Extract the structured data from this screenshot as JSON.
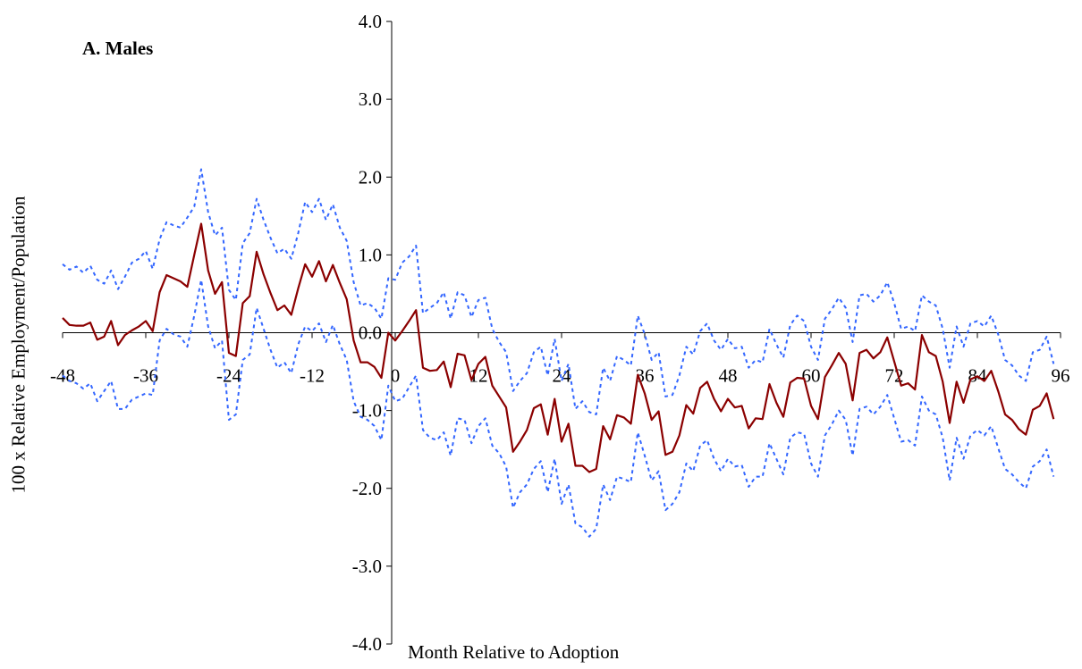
{
  "chart_data": {
    "type": "line",
    "title": "A. Males",
    "xlabel": "Month Relative to Adoption",
    "ylabel": "100 x Relative Employment/Population",
    "xlim": [
      -48,
      96
    ],
    "ylim": [
      -4.0,
      4.0
    ],
    "x_ticks": [
      "-48",
      "-36",
      "-24",
      "-12",
      "0",
      "12",
      "24",
      "36",
      "48",
      "60",
      "72",
      "84",
      "96"
    ],
    "y_ticks": [
      "4.0",
      "3.0",
      "2.0",
      "1.0",
      "0.0",
      "-1.0",
      "-2.0",
      "-3.0",
      "-4.0"
    ],
    "x_start": -48,
    "x_step": 1,
    "series": [
      {
        "role": "estimate",
        "color": "#8B0000",
        "style": "solid",
        "values": [
          0.19,
          0.1,
          0.09,
          0.09,
          0.13,
          -0.09,
          -0.05,
          0.15,
          -0.16,
          -0.03,
          0.03,
          0.08,
          0.15,
          0.02,
          0.52,
          0.74,
          0.7,
          0.66,
          0.59,
          1.0,
          1.4,
          0.8,
          0.5,
          0.65,
          -0.26,
          -0.3,
          0.38,
          0.47,
          1.04,
          0.75,
          0.51,
          0.29,
          0.35,
          0.23,
          0.57,
          0.88,
          0.72,
          0.92,
          0.66,
          0.87,
          0.64,
          0.43,
          -0.1,
          -0.38,
          -0.38,
          -0.44,
          -0.58,
          0.0,
          -0.1,
          0.02,
          0.15,
          0.29,
          -0.45,
          -0.49,
          -0.48,
          -0.37,
          -0.7,
          -0.27,
          -0.29,
          -0.61,
          -0.4,
          -0.31,
          -0.68,
          -0.82,
          -0.96,
          -1.53,
          -1.4,
          -1.25,
          -0.97,
          -0.92,
          -1.31,
          -0.85,
          -1.4,
          -1.17,
          -1.71,
          -1.71,
          -1.79,
          -1.75,
          -1.2,
          -1.37,
          -1.06,
          -1.09,
          -1.17,
          -0.54,
          -0.78,
          -1.12,
          -1.01,
          -1.57,
          -1.53,
          -1.32,
          -0.93,
          -1.04,
          -0.71,
          -0.63,
          -0.85,
          -1.01,
          -0.85,
          -0.96,
          -0.94,
          -1.23,
          -1.1,
          -1.11,
          -0.66,
          -0.9,
          -1.08,
          -0.64,
          -0.58,
          -0.59,
          -0.94,
          -1.11,
          -0.57,
          -0.42,
          -0.26,
          -0.4,
          -0.87,
          -0.26,
          -0.22,
          -0.33,
          -0.25,
          -0.06,
          -0.37,
          -0.68,
          -0.65,
          -0.73,
          -0.03,
          -0.25,
          -0.3,
          -0.63,
          -1.16,
          -0.63,
          -0.9,
          -0.6,
          -0.56,
          -0.62,
          -0.49,
          -0.75,
          -1.05,
          -1.12,
          -1.24,
          -1.31,
          -0.99,
          -0.94,
          -0.78,
          -1.11
        ]
      },
      {
        "role": "upper bound",
        "color": "#3366FF",
        "style": "dotted",
        "values": [
          0.88,
          0.81,
          0.85,
          0.77,
          0.86,
          0.68,
          0.63,
          0.8,
          0.56,
          0.72,
          0.9,
          0.95,
          1.05,
          0.82,
          1.2,
          1.42,
          1.38,
          1.35,
          1.48,
          1.62,
          2.1,
          1.55,
          1.25,
          1.35,
          0.55,
          0.42,
          1.15,
          1.28,
          1.72,
          1.45,
          1.22,
          1.02,
          1.08,
          0.95,
          1.28,
          1.68,
          1.55,
          1.72,
          1.45,
          1.65,
          1.35,
          1.18,
          0.65,
          0.35,
          0.38,
          0.32,
          0.18,
          0.7,
          0.68,
          0.9,
          0.98,
          1.12,
          0.25,
          0.32,
          0.38,
          0.52,
          0.18,
          0.52,
          0.48,
          0.2,
          0.42,
          0.45,
          0.05,
          -0.12,
          -0.25,
          -0.75,
          -0.62,
          -0.52,
          -0.25,
          -0.18,
          -0.55,
          -0.08,
          -0.62,
          -0.4,
          -0.98,
          -0.88,
          -1.02,
          -1.05,
          -0.45,
          -0.62,
          -0.3,
          -0.35,
          -0.42,
          0.22,
          -0.02,
          -0.35,
          -0.25,
          -0.82,
          -0.8,
          -0.55,
          -0.18,
          -0.28,
          0.02,
          0.12,
          -0.1,
          -0.22,
          -0.08,
          -0.2,
          -0.18,
          -0.45,
          -0.35,
          -0.38,
          0.05,
          -0.15,
          -0.32,
          0.1,
          0.22,
          0.15,
          -0.18,
          -0.35,
          0.18,
          0.3,
          0.45,
          0.32,
          -0.12,
          0.48,
          0.5,
          0.4,
          0.48,
          0.65,
          0.38,
          0.05,
          0.08,
          0.02,
          0.48,
          0.4,
          0.35,
          0.05,
          -0.45,
          0.08,
          -0.18,
          0.12,
          0.15,
          0.08,
          0.22,
          -0.02,
          -0.35,
          -0.42,
          -0.55,
          -0.62,
          -0.25,
          -0.22,
          -0.05,
          -0.4
        ]
      },
      {
        "role": "lower bound",
        "color": "#3366FF",
        "style": "dotted",
        "values": [
          -0.55,
          -0.62,
          -0.65,
          -0.72,
          -0.65,
          -0.88,
          -0.75,
          -0.62,
          -0.98,
          -0.98,
          -0.86,
          -0.82,
          -0.78,
          -0.8,
          -0.1,
          0.05,
          -0.02,
          -0.05,
          -0.18,
          0.22,
          0.68,
          0.08,
          -0.2,
          -0.1,
          -1.12,
          -1.05,
          -0.35,
          -0.28,
          0.32,
          0.05,
          -0.22,
          -0.45,
          -0.38,
          -0.52,
          -0.15,
          0.08,
          0.02,
          0.12,
          -0.12,
          0.1,
          -0.15,
          -0.35,
          -0.88,
          -1.08,
          -1.12,
          -1.2,
          -1.38,
          -0.68,
          -0.88,
          -0.85,
          -0.7,
          -0.55,
          -1.25,
          -1.35,
          -1.38,
          -1.28,
          -1.58,
          -1.1,
          -1.12,
          -1.42,
          -1.2,
          -1.1,
          -1.45,
          -1.55,
          -1.72,
          -2.25,
          -2.05,
          -1.95,
          -1.75,
          -1.65,
          -2.05,
          -1.62,
          -2.2,
          -1.95,
          -2.45,
          -2.5,
          -2.62,
          -2.52,
          -1.95,
          -2.15,
          -1.85,
          -1.88,
          -1.92,
          -1.28,
          -1.58,
          -1.9,
          -1.78,
          -2.28,
          -2.2,
          -2.05,
          -1.68,
          -1.78,
          -1.45,
          -1.38,
          -1.62,
          -1.78,
          -1.62,
          -1.72,
          -1.7,
          -1.98,
          -1.85,
          -1.85,
          -1.42,
          -1.62,
          -1.82,
          -1.35,
          -1.28,
          -1.3,
          -1.68,
          -1.85,
          -1.32,
          -1.18,
          -1.0,
          -1.12,
          -1.58,
          -0.98,
          -0.95,
          -1.05,
          -0.95,
          -0.8,
          -1.1,
          -1.4,
          -1.38,
          -1.45,
          -0.82,
          -1.0,
          -1.05,
          -1.35,
          -1.9,
          -1.35,
          -1.62,
          -1.32,
          -1.25,
          -1.32,
          -1.2,
          -1.48,
          -1.75,
          -1.82,
          -1.92,
          -2.0,
          -1.72,
          -1.65,
          -1.5,
          -1.85
        ]
      }
    ]
  }
}
